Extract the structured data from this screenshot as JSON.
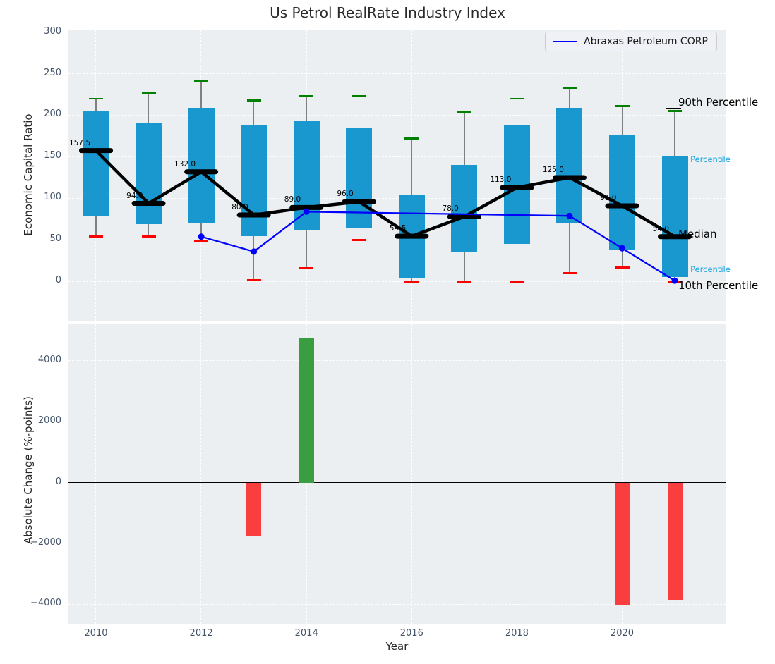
{
  "title": "Us Petrol RealRate Industry Index",
  "legend": {
    "label": "Abraxas Petroleum CORP",
    "line_color": "#0000ff"
  },
  "colors": {
    "box_fill": "#1898cf",
    "median_line": "#000000",
    "whisker": "#808080",
    "cap_high": "#008000",
    "cap_low": "#ff0000",
    "company_line": "#0000ff",
    "bar_positive": "#3a9e41",
    "bar_negative": "#fa3d3f",
    "axes_bg": "#eceff1",
    "grid": "#ffffff",
    "tick_label": "#44546a",
    "percentile_label_cyan": "#17a5e0"
  },
  "chart_data": [
    {
      "type": "boxplot+line",
      "title": "Us Petrol RealRate Industry Index",
      "ylabel": "Economic Capital Ratio",
      "ylim": [
        -48,
        303
      ],
      "yticks": [
        0,
        50,
        100,
        150,
        200,
        250,
        300
      ],
      "grid": true,
      "legend_position": "upper right",
      "years": [
        2010,
        2011,
        2012,
        2013,
        2014,
        2015,
        2016,
        2017,
        2018,
        2019,
        2020,
        2021
      ],
      "boxes": [
        {
          "year": 2010,
          "p10": 54,
          "q1": 79,
          "median": 157.5,
          "q3": 205,
          "p90": 220,
          "label": "157.5"
        },
        {
          "year": 2011,
          "p10": 54,
          "q1": 69,
          "median": 94,
          "q3": 190,
          "p90": 227,
          "label": "94.0"
        },
        {
          "year": 2012,
          "p10": 48,
          "q1": 70,
          "median": 132,
          "q3": 209,
          "p90": 241,
          "label": "132.0"
        },
        {
          "year": 2013,
          "p10": 2,
          "q1": 55,
          "median": 80,
          "q3": 188,
          "p90": 218,
          "label": "80.0"
        },
        {
          "year": 2014,
          "p10": 16,
          "q1": 62,
          "median": 89,
          "q3": 193,
          "p90": 223,
          "label": "89.0"
        },
        {
          "year": 2015,
          "p10": 50,
          "q1": 64,
          "median": 96,
          "q3": 184,
          "p90": 223,
          "label": "96.0"
        },
        {
          "year": 2016,
          "p10": 0,
          "q1": 4,
          "median": 54.5,
          "q3": 105,
          "p90": 172,
          "label": "54.5"
        },
        {
          "year": 2017,
          "p10": 0,
          "q1": 36,
          "median": 78,
          "q3": 140,
          "p90": 204,
          "label": "78.0"
        },
        {
          "year": 2018,
          "p10": 0,
          "q1": 45,
          "median": 113,
          "q3": 188,
          "p90": 220,
          "label": "113.0"
        },
        {
          "year": 2019,
          "p10": 10,
          "q1": 71,
          "median": 125,
          "q3": 209,
          "p90": 233,
          "label": "125.0"
        },
        {
          "year": 2020,
          "p10": 17,
          "q1": 38,
          "median": 91,
          "q3": 177,
          "p90": 211,
          "label": "91.0"
        },
        {
          "year": 2021,
          "p10": 0,
          "q1": 5,
          "median": 54,
          "q3": 151,
          "p90": 205,
          "label": "54.0"
        }
      ],
      "series": [
        {
          "name": "Abraxas Petroleum CORP",
          "points": [
            [
              2012,
              54
            ],
            [
              2013,
              36
            ],
            [
              2014,
              84
            ],
            [
              2019,
              79
            ],
            [
              2020,
              40
            ],
            [
              2021,
              1
            ]
          ]
        }
      ],
      "annotations": [
        {
          "text": "90th Percentile",
          "value": 215,
          "color": "#000000",
          "size": 15,
          "style": "black",
          "leader": true
        },
        {
          "text": "75th Percentile",
          "value": 146,
          "color": "#17a5e0",
          "size": 11.5,
          "style": "cyan",
          "leader": false
        },
        {
          "text": "Median",
          "value": 56,
          "color": "#000000",
          "size": 15,
          "style": "black",
          "leader": false
        },
        {
          "text": "25th Percentile",
          "value": 13.5,
          "color": "#17a5e0",
          "size": 11.5,
          "style": "cyan",
          "leader": false
        },
        {
          "text": "10th Percentile",
          "value": -6,
          "color": "#000000",
          "size": 15,
          "style": "black",
          "leader": false
        }
      ]
    },
    {
      "type": "bar",
      "ylabel": "Absolute Change (%-points)",
      "xlabel": "Year",
      "ylim": [
        -4640,
        5200
      ],
      "yticks": [
        -4000,
        -2000,
        0,
        2000,
        4000
      ],
      "xticks": [
        2010,
        2012,
        2014,
        2016,
        2018,
        2020
      ],
      "grid": true,
      "zero_line": 0,
      "bars": [
        {
          "year": 2013,
          "value": -1770
        },
        {
          "year": 2014,
          "value": 4760
        },
        {
          "year": 2020,
          "value": -4040
        },
        {
          "year": 2021,
          "value": -3860
        }
      ]
    }
  ]
}
